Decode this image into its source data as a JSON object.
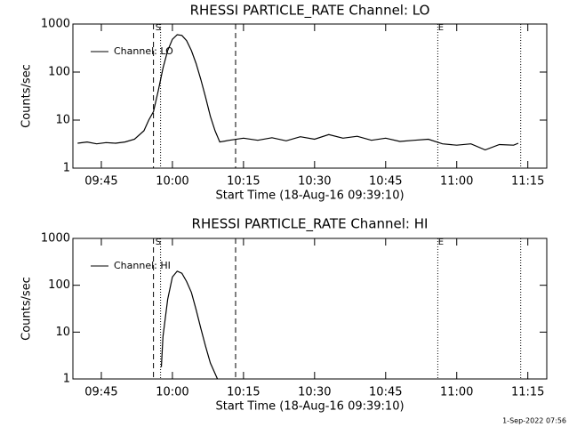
{
  "chart_data": [
    {
      "type": "line",
      "title": "RHESSI PARTICLE_RATE Channel: LO",
      "x_label": "Start Time (18-Aug-16 09:39:10)",
      "y_label": "Counts/sec",
      "x": [
        "09:40",
        "09:42",
        "09:44",
        "09:46",
        "09:48",
        "09:50",
        "09:52",
        "09:54",
        "09:55",
        "09:56",
        "09:57",
        "09:58",
        "09:59",
        "10:00",
        "10:01",
        "10:02",
        "10:03",
        "10:04",
        "10:05",
        "10:06",
        "10:07",
        "10:08",
        "10:09",
        "10:10",
        "10:12",
        "10:15",
        "10:18",
        "10:21",
        "10:24",
        "10:27",
        "10:30",
        "10:33",
        "10:36",
        "10:39",
        "10:42",
        "10:45",
        "10:48",
        "10:51",
        "10:54",
        "10:57",
        "11:00",
        "11:03",
        "11:06",
        "11:09",
        "11:12",
        "11:13"
      ],
      "series": [
        {
          "name": "Channel: LO",
          "color": "#000000",
          "values": [
            3.3,
            3.5,
            3.2,
            3.4,
            3.3,
            3.5,
            4,
            6,
            10,
            15,
            40,
            120,
            280,
            480,
            600,
            580,
            450,
            280,
            150,
            70,
            30,
            12,
            6,
            3.5,
            3.8,
            4.2,
            3.8,
            4.3,
            3.7,
            4.5,
            4.0,
            5.0,
            4.2,
            4.6,
            3.8,
            4.2,
            3.6,
            3.8,
            4.0,
            3.2,
            3.0,
            3.2,
            2.4,
            3.1,
            3.0,
            3.3
          ]
        }
      ],
      "xlim": [
        "09:39",
        "11:19"
      ],
      "xticks": [
        "09:45",
        "10:00",
        "10:15",
        "10:30",
        "10:45",
        "11:00",
        "11:15"
      ],
      "ylim": [
        1,
        1000
      ],
      "yticks": [
        1,
        10,
        100,
        1000
      ],
      "ylog": true,
      "markers": [
        {
          "x": "09:56",
          "style": "dashed"
        },
        {
          "x": "09:57:30",
          "style": "dotted"
        },
        {
          "x": "10:13:20",
          "style": "dashed"
        },
        {
          "x": "10:56",
          "style": "dotted"
        },
        {
          "x": "11:13:30",
          "style": "dotted"
        }
      ],
      "annotations": [
        {
          "text": "S",
          "x": "09:57"
        },
        {
          "text": "E",
          "x": "10:56:40"
        }
      ]
    },
    {
      "type": "line",
      "title": "RHESSI PARTICLE_RATE Channel: HI",
      "x_label": "Start Time (18-Aug-16 09:39:10)",
      "y_label": "Counts/sec",
      "x": [
        "09:57:40",
        "09:58",
        "09:59",
        "10:00",
        "10:01",
        "10:02",
        "10:03",
        "10:04",
        "10:05",
        "10:06",
        "10:07",
        "10:08",
        "10:09:30"
      ],
      "series": [
        {
          "name": "Channel: HI",
          "color": "#000000",
          "values": [
            1.8,
            8,
            50,
            150,
            200,
            180,
            120,
            70,
            30,
            12,
            5,
            2.2,
            1
          ]
        }
      ],
      "xlim": [
        "09:39",
        "11:19"
      ],
      "xticks": [
        "09:45",
        "10:00",
        "10:15",
        "10:30",
        "10:45",
        "11:00",
        "11:15"
      ],
      "ylim": [
        1,
        1000
      ],
      "yticks": [
        1,
        10,
        100,
        1000
      ],
      "ylog": true,
      "markers": [
        {
          "x": "09:56",
          "style": "dashed"
        },
        {
          "x": "09:57:30",
          "style": "dotted"
        },
        {
          "x": "10:13:20",
          "style": "dashed"
        },
        {
          "x": "10:56",
          "style": "dotted"
        },
        {
          "x": "11:13:30",
          "style": "dotted"
        }
      ],
      "annotations": [
        {
          "text": "S",
          "x": "09:57"
        },
        {
          "text": "E",
          "x": "10:56:40"
        }
      ]
    }
  ],
  "footer": "1-Sep-2022 07:56"
}
